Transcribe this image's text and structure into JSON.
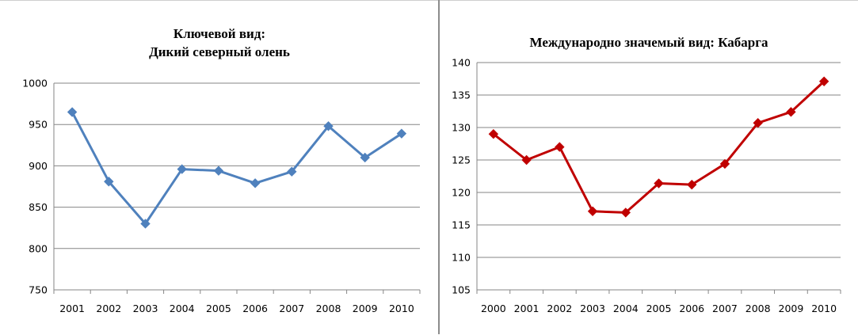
{
  "chart_data": [
    {
      "type": "line",
      "title_lines": [
        "Ключевой вид:",
        "Дикий северный олень"
      ],
      "x": [
        "2001",
        "2002",
        "2003",
        "2004",
        "2005",
        "2006",
        "2007",
        "2008",
        "2009",
        "2010"
      ],
      "series": [
        {
          "values": [
            965,
            881,
            830,
            896,
            894,
            879,
            893,
            948,
            910,
            939
          ]
        }
      ],
      "ylim": [
        750,
        1000
      ],
      "yticks": [
        "750",
        "800",
        "850",
        "900",
        "950",
        "1000"
      ],
      "grid": true,
      "color": "#4f81bd",
      "marker": "diamond"
    },
    {
      "type": "line",
      "title_lines": [
        "Международно значемый вид: Кабарга"
      ],
      "x": [
        "2000",
        "2001",
        "2002",
        "2003",
        "2004",
        "2005",
        "2006",
        "2007",
        "2008",
        "2009",
        "2010"
      ],
      "series": [
        {
          "values": [
            129,
            125,
            127,
            117.1,
            116.9,
            121.4,
            121.2,
            124.4,
            130.7,
            132.4,
            137.1
          ]
        }
      ],
      "ylim": [
        105,
        140
      ],
      "yticks": [
        "105",
        "110",
        "115",
        "120",
        "125",
        "130",
        "135",
        "140"
      ],
      "grid": true,
      "color": "#c00000",
      "marker": "diamond"
    }
  ]
}
